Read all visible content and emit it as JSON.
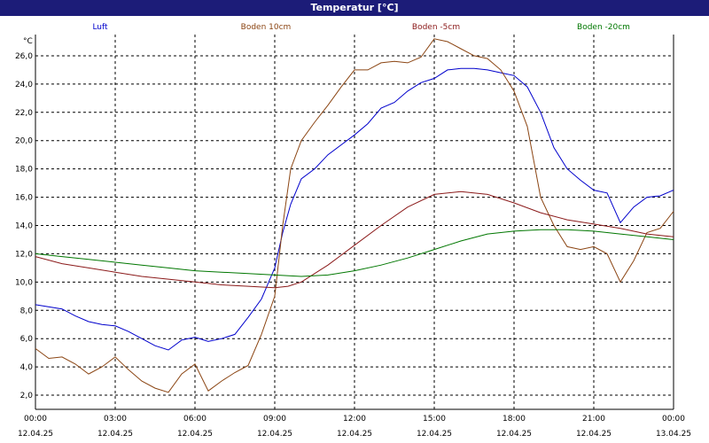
{
  "window": {
    "title": "Temperatur [°C]"
  },
  "chart_data": {
    "type": "line",
    "title": "Temperatur [°C]",
    "ylabel": "°C",
    "ylim": [
      1,
      27.5
    ],
    "xlim_hours": [
      0,
      24
    ],
    "yticks": [
      "2,0",
      "4,0",
      "6,0",
      "8,0",
      "10,0",
      "12,0",
      "14,0",
      "16,0",
      "18,0",
      "20,0",
      "22,0",
      "24,0",
      "26,0"
    ],
    "ytick_values": [
      2,
      4,
      6,
      8,
      10,
      12,
      14,
      16,
      18,
      20,
      22,
      24,
      26
    ],
    "xticks": [
      {
        "time": "00:00",
        "date": "12.04.25"
      },
      {
        "time": "03:00",
        "date": "12.04.25"
      },
      {
        "time": "06:00",
        "date": "12.04.25"
      },
      {
        "time": "09:00",
        "date": "12.04.25"
      },
      {
        "time": "12:00",
        "date": "12.04.25"
      },
      {
        "time": "15:00",
        "date": "12.04.25"
      },
      {
        "time": "18:00",
        "date": "12.04.25"
      },
      {
        "time": "21:00",
        "date": "12.04.25"
      },
      {
        "time": "00:00",
        "date": "13.04.25"
      }
    ],
    "grid": true,
    "legend_position": "top",
    "series": [
      {
        "name": "Luft",
        "color": "#0000cc",
        "x": [
          0,
          1,
          1.5,
          2,
          2.5,
          3,
          3.5,
          4,
          4.5,
          5,
          5.5,
          6,
          6.5,
          7,
          7.5,
          8,
          8.5,
          9,
          9.3,
          9.6,
          10,
          10.5,
          11,
          11.5,
          12,
          12.5,
          13,
          13.5,
          14,
          14.5,
          15,
          15.5,
          16,
          16.5,
          17,
          17.5,
          18,
          18.5,
          19,
          19.5,
          20,
          20.5,
          21,
          21.5,
          22,
          22.5,
          23,
          23.5,
          24
        ],
        "y": [
          8.4,
          8.1,
          7.6,
          7.2,
          7.0,
          6.9,
          6.5,
          6.0,
          5.5,
          5.2,
          5.9,
          6.1,
          5.8,
          6.0,
          6.3,
          7.5,
          8.8,
          11.0,
          13.5,
          15.5,
          17.3,
          18.0,
          19.0,
          19.7,
          20.4,
          21.2,
          22.3,
          22.7,
          23.5,
          24.1,
          24.4,
          25.0,
          25.1,
          25.1,
          25.0,
          24.8,
          24.6,
          23.8,
          22.0,
          19.5,
          18.0,
          17.2,
          16.5,
          16.3,
          14.2,
          15.3,
          16.0,
          16.1,
          16.5
        ]
      },
      {
        "name": "Boden 10cm",
        "color": "#8b4513",
        "x": [
          0,
          0.5,
          1,
          1.5,
          2,
          2.5,
          3,
          3.5,
          4,
          4.5,
          5,
          5.5,
          6,
          6.5,
          7,
          7.5,
          8,
          8.5,
          9,
          9.3,
          9.6,
          10,
          10.5,
          11,
          11.5,
          12,
          12.5,
          13,
          13.5,
          14,
          14.5,
          15,
          15.5,
          16,
          16.5,
          17,
          17.5,
          18,
          18.5,
          19,
          19.5,
          20,
          20.5,
          21,
          21.5,
          22,
          22.5,
          23,
          23.5,
          24
        ],
        "y": [
          5.3,
          4.6,
          4.7,
          4.2,
          3.5,
          4.0,
          4.7,
          3.8,
          3.0,
          2.5,
          2.2,
          3.5,
          4.2,
          2.3,
          3.0,
          3.6,
          4.1,
          6.3,
          9.0,
          14.0,
          18.0,
          20.0,
          21.3,
          22.5,
          23.8,
          25.0,
          25.0,
          25.5,
          25.6,
          25.5,
          25.9,
          27.2,
          27.0,
          26.5,
          26.0,
          25.8,
          25.0,
          23.5,
          21.0,
          16.0,
          14.0,
          12.5,
          12.3,
          12.5,
          12.0,
          10.0,
          11.5,
          13.5,
          13.8,
          15.0
        ]
      },
      {
        "name": "Boden -5cm",
        "color": "#8b1a1a",
        "x": [
          0,
          1,
          2,
          3,
          4,
          5,
          6,
          7,
          8,
          9,
          9.5,
          10,
          11,
          12,
          13,
          14,
          15,
          16,
          17,
          18,
          19,
          20,
          21,
          22,
          23,
          24
        ],
        "y": [
          11.8,
          11.3,
          11.0,
          10.7,
          10.4,
          10.2,
          10.0,
          9.8,
          9.7,
          9.6,
          9.7,
          10.0,
          11.2,
          12.6,
          14.0,
          15.3,
          16.2,
          16.4,
          16.2,
          15.6,
          14.9,
          14.4,
          14.1,
          13.8,
          13.4,
          13.2
        ]
      },
      {
        "name": "Boden -20cm",
        "color": "#007700",
        "x": [
          0,
          1,
          2,
          3,
          4,
          5,
          6,
          7,
          8,
          9,
          10,
          11,
          12,
          13,
          14,
          15,
          16,
          17,
          18,
          19,
          20,
          21,
          22,
          23,
          24
        ],
        "y": [
          12.0,
          11.8,
          11.6,
          11.4,
          11.2,
          11.0,
          10.8,
          10.7,
          10.6,
          10.5,
          10.4,
          10.5,
          10.8,
          11.2,
          11.7,
          12.3,
          12.9,
          13.4,
          13.6,
          13.7,
          13.7,
          13.6,
          13.4,
          13.2,
          13.0
        ]
      }
    ]
  }
}
